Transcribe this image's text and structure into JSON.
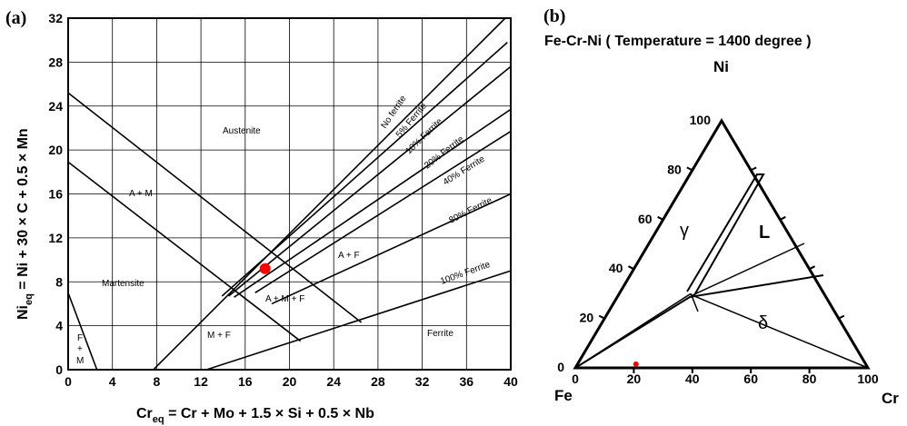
{
  "panel_a": {
    "label": "(a)",
    "y_axis_title": {
      "main": "Ni",
      "sub": "eq",
      "rest": " = Ni + 30 × C + 0.5 × Mn"
    },
    "x_axis_title": {
      "main": "Cr",
      "sub": "eq",
      "rest": " = Cr + Mo + 1.5 × Si + 0.5 × Nb"
    },
    "x_ticks": [
      "0",
      "4",
      "8",
      "12",
      "16",
      "20",
      "24",
      "28",
      "32",
      "36",
      "40"
    ],
    "y_ticks": [
      "0",
      "4",
      "8",
      "12",
      "16",
      "20",
      "24",
      "28",
      "32"
    ],
    "regions": {
      "austenite": "Austenite",
      "a_plus_m": "A + M",
      "martensite": "Martensite",
      "a_plus_f": "A + F",
      "a_m_f": "A + M + F",
      "m_plus_f": "M + F",
      "ferrite": "Ferrite",
      "f_plus_m": [
        "F",
        "+",
        "M"
      ]
    },
    "ferrite_lines": [
      "No ferrite",
      "5% Ferrite",
      "10% Ferrite",
      "20% Ferrite",
      "40% Ferrite",
      "80% Ferrite",
      "100% Ferrite"
    ],
    "marker": {
      "cr_eq": 17.8,
      "ni_eq": 9.2,
      "color": "#ff0000"
    }
  },
  "panel_b": {
    "label": "(b)",
    "title": "Fe-Cr-Ni ( Temperature = 1400 degree )",
    "vertices": {
      "top": "Ni",
      "left": "Fe",
      "right": "Cr"
    },
    "bottom_ticks": [
      "0",
      "20",
      "40",
      "60",
      "80",
      "100"
    ],
    "left_ticks": [
      "0",
      "20",
      "40",
      "60",
      "80",
      "100"
    ],
    "phases": {
      "gamma": "γ",
      "liquid": "L",
      "delta": "δ"
    },
    "marker": {
      "cr": 20,
      "ni": 1.5,
      "color": "#ff0000"
    }
  }
}
